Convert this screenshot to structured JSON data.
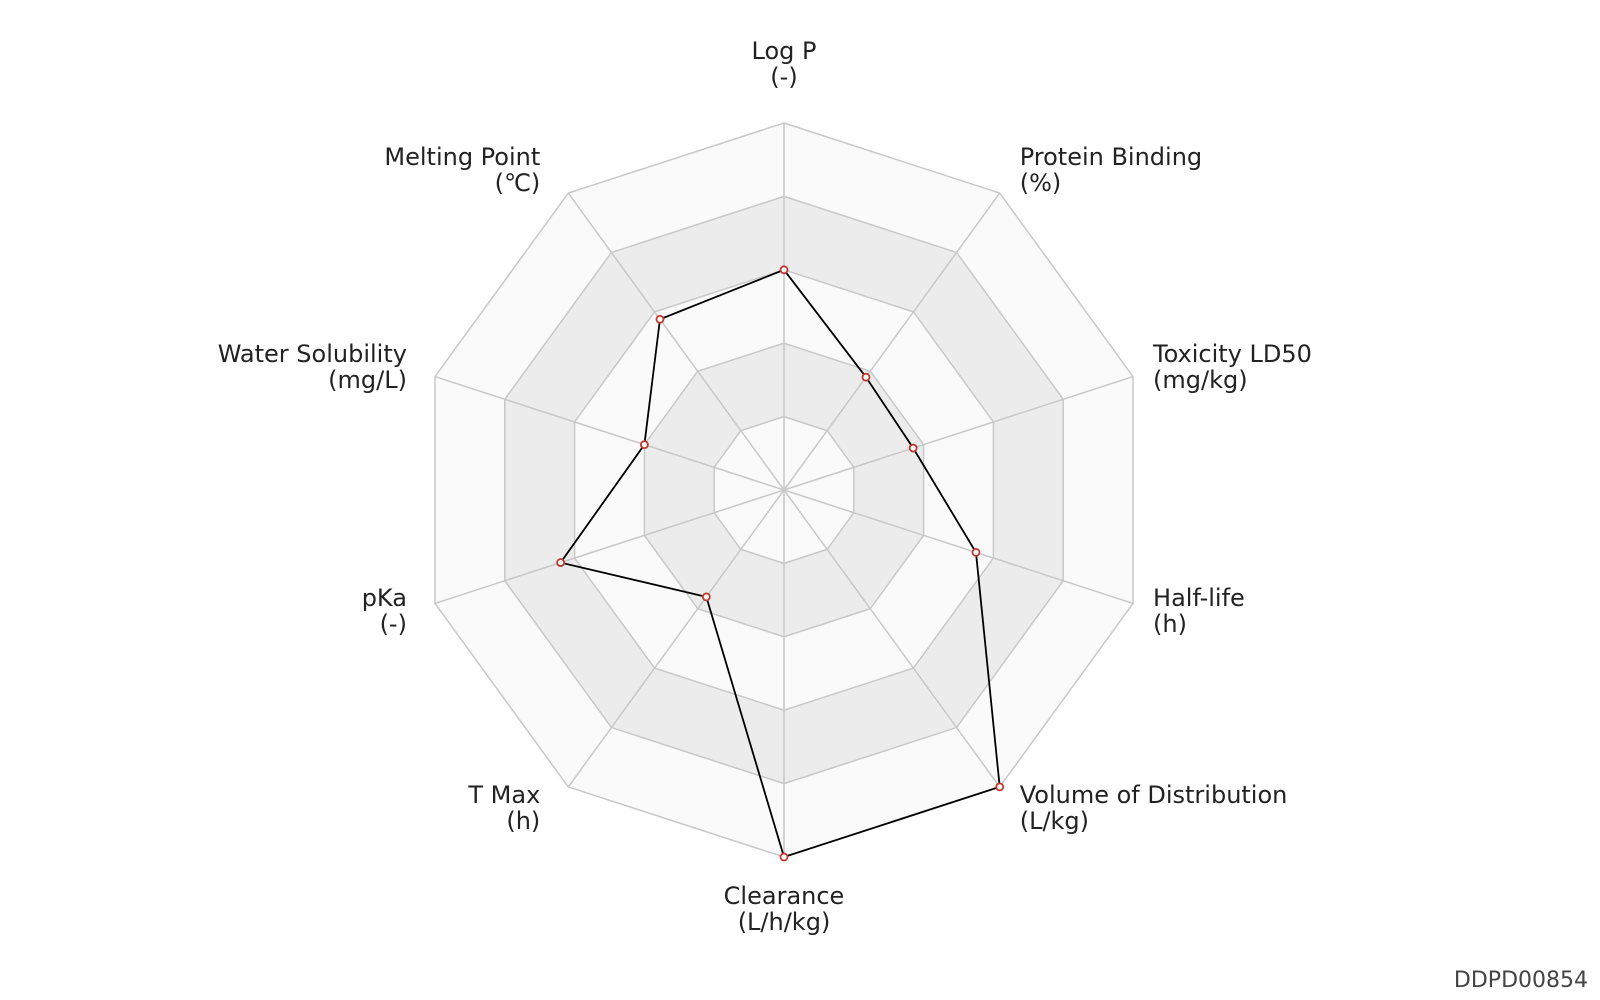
{
  "chart_data": {
    "type": "radar",
    "categories": [
      "Log P",
      "Protein Binding",
      "Toxicity LD50",
      "Half-life",
      "Volume of Distribution",
      "Clearance",
      "T Max",
      "pKa",
      "Water Solubility",
      "Melting Point"
    ],
    "units": [
      "(-)",
      "(%)",
      "(mg/kg)",
      "(h)",
      "(L/kg)",
      "(L/h/kg)",
      "(h)",
      "(-)",
      "(mg/L)",
      "(℃)"
    ],
    "values": [
      0.6,
      0.38,
      0.37,
      0.55,
      1.0,
      1.0,
      0.36,
      0.64,
      0.4,
      0.575
    ],
    "rlim": [
      0,
      1
    ],
    "rticks": [
      0.2,
      0.4,
      0.6,
      0.8,
      1.0
    ],
    "line_color": "#000000",
    "marker_color": "#c0392b",
    "band_colors": [
      "#fafafa",
      "#ececec"
    ],
    "watermark": "DDPD00854"
  }
}
